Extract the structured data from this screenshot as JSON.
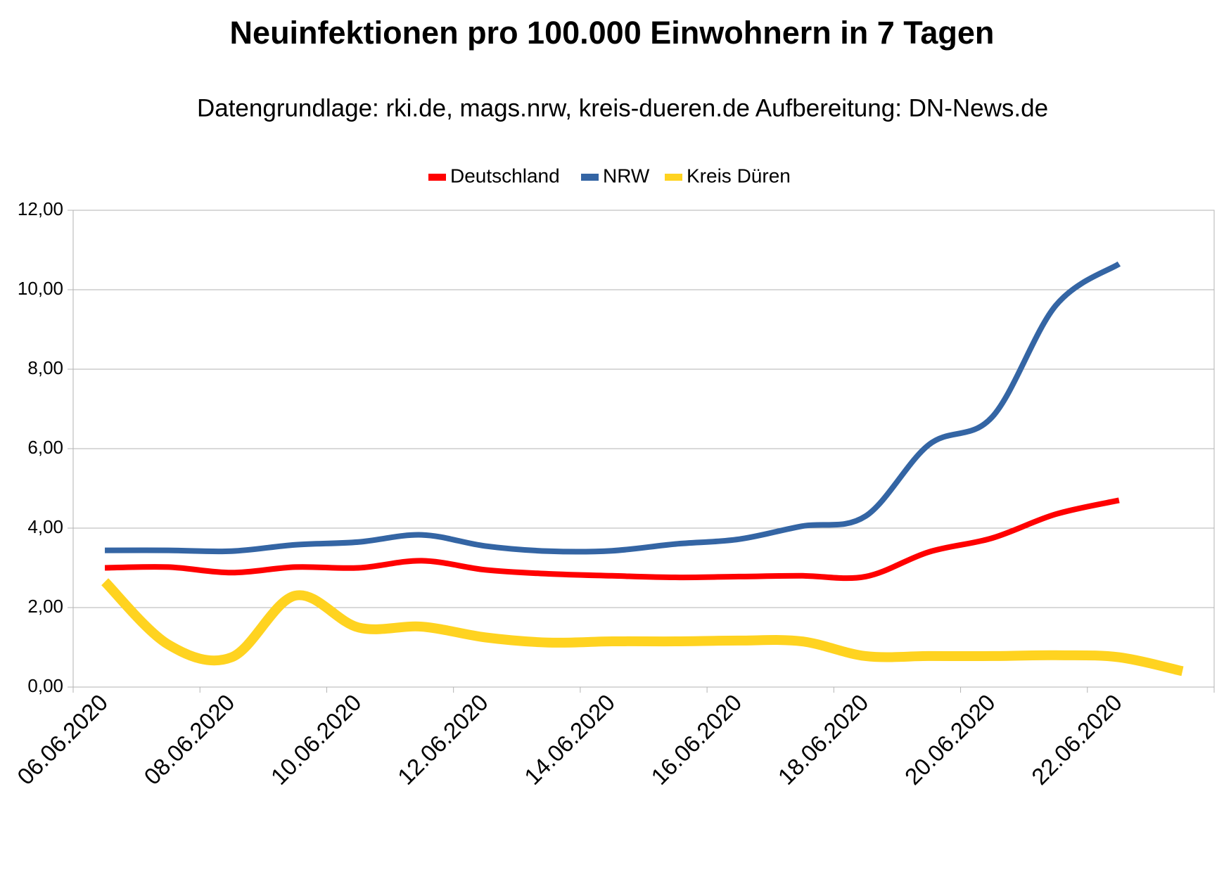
{
  "chart_data": {
    "type": "line",
    "title": "Neuinfektionen pro 100.000 Einwohnern in 7 Tagen",
    "subtitle": "Datengrundlage: rki.de, mags.nrw, kreis-dueren.de Aufbereitung: DN-News.de",
    "categories": [
      "06.06.2020",
      null,
      "08.06.2020",
      null,
      "10.06.2020",
      null,
      "12.06.2020",
      null,
      "14.06.2020",
      null,
      "16.06.2020",
      null,
      "18.06.2020",
      null,
      "20.06.2020",
      null,
      "22.06.2020",
      null
    ],
    "series": [
      {
        "name": "Deutschland",
        "color": "#ff0000",
        "values": [
          3.0,
          3.02,
          2.88,
          3.02,
          3.0,
          3.18,
          2.95,
          2.85,
          2.8,
          2.76,
          2.78,
          2.8,
          2.78,
          3.4,
          3.75,
          4.35,
          4.7,
          null
        ]
      },
      {
        "name": "NRW",
        "color": "#3465a4",
        "values": [
          3.44,
          3.44,
          3.42,
          3.58,
          3.65,
          3.83,
          3.55,
          3.42,
          3.43,
          3.6,
          3.72,
          4.05,
          4.3,
          6.1,
          6.8,
          9.6,
          10.65,
          null
        ]
      },
      {
        "name": "Kreis Düren",
        "color": "#ffd320",
        "values": [
          2.65,
          1.07,
          0.75,
          2.3,
          1.5,
          1.52,
          1.25,
          1.12,
          1.15,
          1.15,
          1.17,
          1.15,
          0.78,
          0.78,
          0.78,
          0.8,
          0.75,
          0.4
        ]
      }
    ],
    "ylim": [
      0,
      12
    ],
    "yticks": [
      {
        "value": 0,
        "label": "0,00"
      },
      {
        "value": 2,
        "label": "2,00"
      },
      {
        "value": 4,
        "label": "4,00"
      },
      {
        "value": 6,
        "label": "6,00"
      },
      {
        "value": 8,
        "label": "8,00"
      },
      {
        "value": 10,
        "label": "10,00"
      },
      {
        "value": 12,
        "label": "12,00"
      }
    ],
    "grid": true,
    "legend": "top"
  }
}
